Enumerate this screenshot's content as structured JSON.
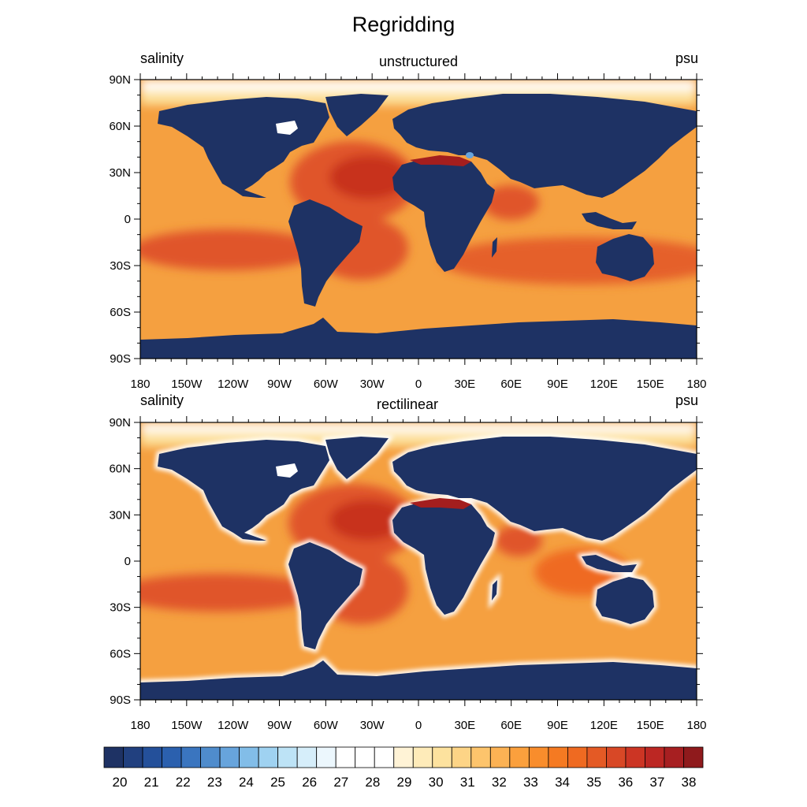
{
  "title": "Regridding",
  "panels": [
    {
      "left_label": "salinity",
      "center_label": "unstructured",
      "right_label": "psu"
    },
    {
      "left_label": "salinity",
      "center_label": "rectilinear",
      "right_label": "psu"
    }
  ],
  "lat_labels": [
    "90N",
    "60N",
    "30N",
    "0",
    "30S",
    "60S",
    "90S"
  ],
  "lon_labels": [
    "180",
    "150W",
    "120W",
    "90W",
    "60W",
    "30W",
    "0",
    "30E",
    "60E",
    "90E",
    "120E",
    "150E",
    "180"
  ],
  "colorbar": {
    "labels": [
      "20",
      "21",
      "22",
      "23",
      "24",
      "25",
      "26",
      "27",
      "28",
      "29",
      "30",
      "31",
      "32",
      "33",
      "34",
      "35",
      "36",
      "37",
      "38"
    ],
    "colors": [
      "#1e3264",
      "#21407f",
      "#24509a",
      "#2b60ae",
      "#3a75bf",
      "#4f8ccc",
      "#67a4dc",
      "#82bde8",
      "#9fd2f1",
      "#bde3f6",
      "#d6eefa",
      "#ecf7fd",
      "#ffffff",
      "#ffffff",
      "#ffffff",
      "#fff3d6",
      "#feebb9",
      "#fde29e",
      "#fdd486",
      "#fdc46c",
      "#fcb254",
      "#fba03d",
      "#f98d2c",
      "#f57a22",
      "#ef6a21",
      "#e45a25",
      "#d84826",
      "#cc3524",
      "#bc2723",
      "#a71f21",
      "#8f1a1c"
    ]
  },
  "colors": {
    "land": "#1e3264",
    "ocean_base": "#f5a040",
    "high_salinity": "#e0552a",
    "very_high_salinity": "#c8331f",
    "max_salinity": "#a41e1e",
    "low_salinity": "#fde29e"
  }
}
